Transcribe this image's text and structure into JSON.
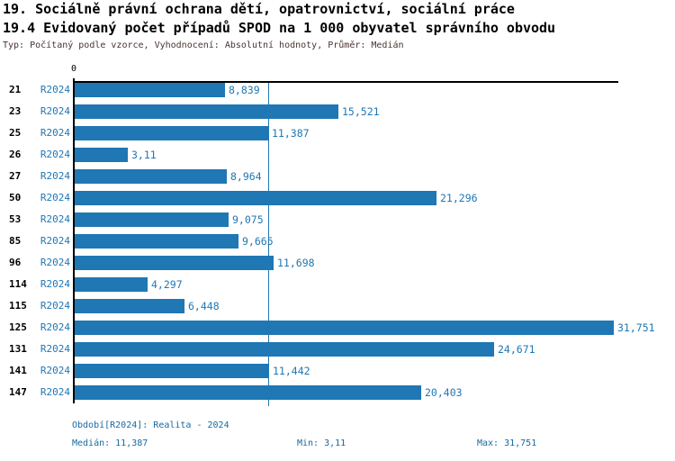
{
  "header": {
    "title1": "19. Sociálně právní ochrana dětí, opatrovnictví, sociální práce",
    "title2": "19.4 Evidovaný počet případů SPOD na 1 000 obyvatel správního obvodu",
    "meta": "Typ: Počítaný podle vzorce, Vyhodnocení: Absolutní hodnoty, Průměr: Medián"
  },
  "chart_data": {
    "type": "bar",
    "orientation": "horizontal",
    "title": "19.4 Evidovaný počet případů SPOD na 1 000 obyvatel správního obvodu",
    "categories": [
      "21",
      "23",
      "25",
      "26",
      "27",
      "50",
      "53",
      "85",
      "96",
      "114",
      "115",
      "125",
      "131",
      "141",
      "147"
    ],
    "series_label": "R2024",
    "values": [
      8.839,
      15.521,
      11.387,
      3.11,
      8.964,
      21.296,
      9.075,
      9.665,
      11.698,
      4.297,
      6.448,
      31.751,
      24.671,
      11.442,
      20.403
    ],
    "value_labels": [
      "8,839",
      "15,521",
      "11,387",
      "3,11",
      "8,964",
      "21,296",
      "9,075",
      "9,665",
      "11,698",
      "4,297",
      "6,448",
      "31,751",
      "24,671",
      "11,442",
      "20,403"
    ],
    "xlim": [
      0,
      32
    ],
    "zero_tick_label": "0",
    "median_value": 11.387,
    "grid": "none",
    "legend": "none"
  },
  "footer": {
    "period": "Období[R2024]: Realita - 2024",
    "median": "Medián: 11,387",
    "min": "Min: 3,11",
    "max": "Max: 31,751"
  },
  "colors": {
    "bar": "#1f77b4",
    "median_line": "#1f77b4",
    "blue_text": "#17699f",
    "axis": "#000000",
    "meta_text": "#4a3333"
  }
}
